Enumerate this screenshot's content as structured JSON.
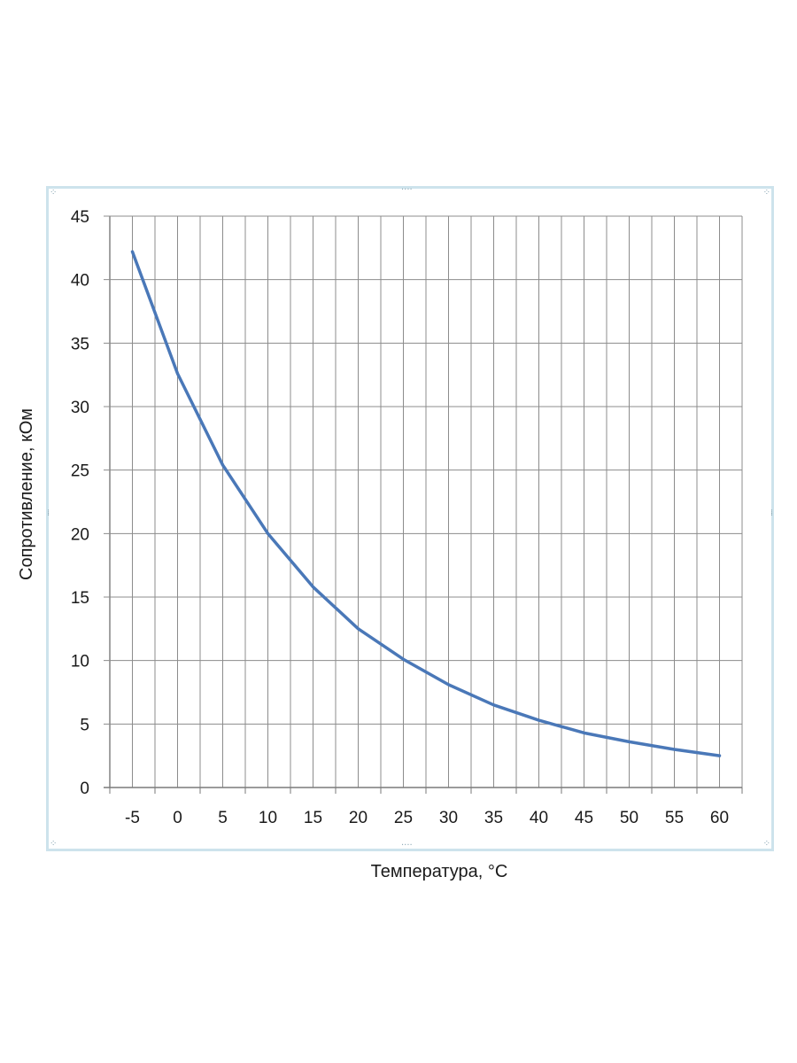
{
  "chart_data": {
    "type": "line",
    "xlabel": "Температура,  °C",
    "ylabel": "Сопротивление, кОм",
    "categories": [
      "-5",
      "0",
      "5",
      "10",
      "15",
      "20",
      "25",
      "30",
      "35",
      "40",
      "45",
      "50",
      "55",
      "60"
    ],
    "x": [
      -5,
      0,
      5,
      10,
      15,
      20,
      25,
      30,
      35,
      40,
      45,
      50,
      55,
      60
    ],
    "y_ticks": [
      "0",
      "5",
      "10",
      "15",
      "20",
      "25",
      "30",
      "35",
      "40",
      "45"
    ],
    "ylim": [
      0,
      45
    ],
    "grid": true,
    "legend": "none",
    "series": [
      {
        "values": [
          42.2,
          32.6,
          25.4,
          20.0,
          15.8,
          12.5,
          10.1,
          8.1,
          6.5,
          5.3,
          4.3,
          3.6,
          3.0,
          2.5
        ],
        "color": "#4a78b8"
      }
    ]
  }
}
